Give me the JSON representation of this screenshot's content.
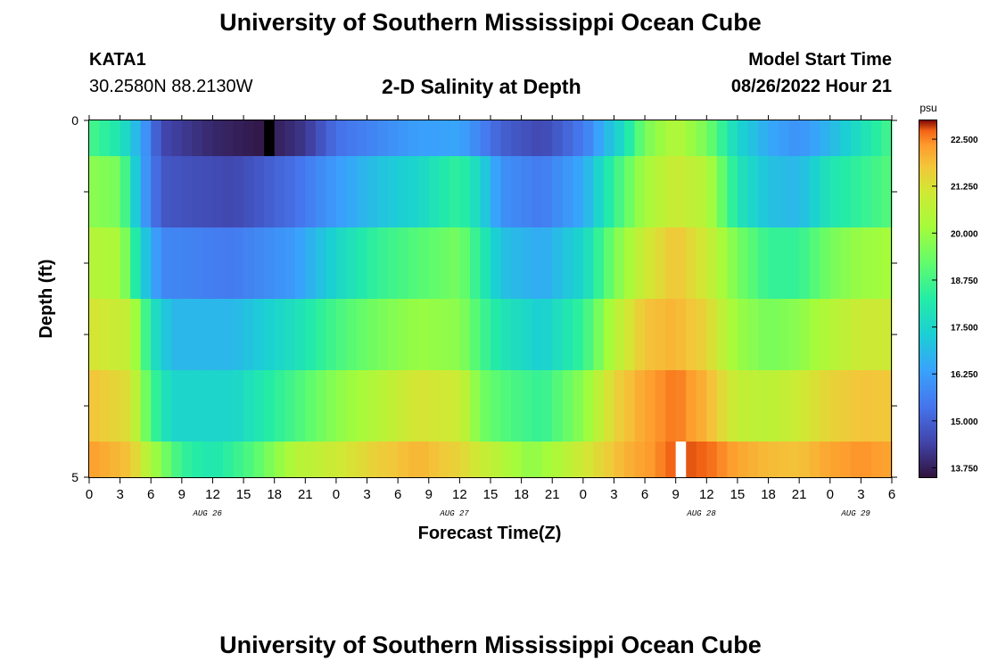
{
  "page": {
    "main_title": "University of Southern Mississippi Ocean Cube",
    "station_name": "KATA1",
    "station_coords": "30.2580N  88.2130W",
    "chart_title": "2-D Salinity at Depth",
    "model_start_label": "Model Start Time",
    "model_start_time": "08/26/2022 Hour 21",
    "footer_title": "University of Southern Mississippi Ocean Cube"
  },
  "chart_data": {
    "type": "heatmap",
    "title": "2-D Salinity at Depth",
    "xlabel": "Forecast Time(Z)",
    "ylabel": "Depth (ft)",
    "colorbar_unit": "psu",
    "ylim": [
      0,
      5
    ],
    "y_tick_labels": [
      "0",
      "5"
    ],
    "y_tick_values": [
      0,
      1,
      2,
      3,
      4,
      5
    ],
    "x_hour_range": [
      0,
      78
    ],
    "x_tick_hours": [
      0,
      3,
      6,
      9,
      12,
      15,
      18,
      21,
      24,
      27,
      30,
      33,
      36,
      39,
      42,
      45,
      48,
      51,
      54,
      57,
      60,
      63,
      66,
      69,
      72,
      75,
      78
    ],
    "x_tick_labels": [
      "0",
      "3",
      "6",
      "9",
      "12",
      "15",
      "18",
      "21",
      "0",
      "3",
      "6",
      "9",
      "12",
      "15",
      "18",
      "21",
      "0",
      "3",
      "6",
      "9",
      "12",
      "15",
      "18",
      "21",
      "0",
      "3",
      "6"
    ],
    "date_labels": [
      {
        "text": "AUG 26",
        "hour": 11.5
      },
      {
        "text": "AUG 27",
        "hour": 35.5
      },
      {
        "text": "AUG 28",
        "hour": 59.5
      },
      {
        "text": "AUG 29",
        "hour": 74.5
      }
    ],
    "colorbar_min": 13.5,
    "colorbar_max": 23.0,
    "colorbar_ticks": [
      "22.500",
      "21.250",
      "20.000",
      "18.750",
      "17.500",
      "16.250",
      "15.000",
      "13.750"
    ],
    "colorbar_tick_values": [
      22.5,
      21.25,
      20.0,
      18.75,
      17.5,
      16.25,
      15.0,
      13.75
    ],
    "depth_layers": [
      {
        "depth_range": [
          0.0,
          0.5
        ],
        "keyframes": [
          [
            0,
            18.8
          ],
          [
            3,
            18.0
          ],
          [
            5,
            16.5
          ],
          [
            7,
            14.5
          ],
          [
            12,
            13.9
          ],
          [
            17,
            13.6
          ],
          [
            21,
            14.2
          ],
          [
            24,
            15.3
          ],
          [
            28,
            15.8
          ],
          [
            32,
            16.3
          ],
          [
            36,
            16.4
          ],
          [
            40,
            15.0
          ],
          [
            44,
            14.5
          ],
          [
            48,
            15.5
          ],
          [
            52,
            17.8
          ],
          [
            54,
            19.5
          ],
          [
            57,
            20.5
          ],
          [
            60,
            19.5
          ],
          [
            63,
            17.5
          ],
          [
            66,
            16.5
          ],
          [
            69,
            16.0
          ],
          [
            72,
            16.8
          ],
          [
            75,
            17.8
          ],
          [
            78,
            18.8
          ]
        ]
      },
      {
        "depth_range": [
          0.5,
          1.5
        ],
        "keyframes": [
          [
            0,
            19.8
          ],
          [
            3,
            19.5
          ],
          [
            5,
            16.5
          ],
          [
            7,
            14.8
          ],
          [
            14,
            14.5
          ],
          [
            20,
            15.3
          ],
          [
            24,
            16.2
          ],
          [
            28,
            17.0
          ],
          [
            32,
            17.5
          ],
          [
            36,
            18.5
          ],
          [
            38,
            17.5
          ],
          [
            40,
            16.0
          ],
          [
            44,
            15.5
          ],
          [
            48,
            16.5
          ],
          [
            51,
            18.5
          ],
          [
            54,
            20.2
          ],
          [
            57,
            21.0
          ],
          [
            60,
            20.5
          ],
          [
            63,
            18.0
          ],
          [
            66,
            17.0
          ],
          [
            69,
            16.8
          ],
          [
            72,
            18.0
          ],
          [
            75,
            18.5
          ],
          [
            78,
            19.0
          ]
        ]
      },
      {
        "depth_range": [
          1.5,
          2.5
        ],
        "keyframes": [
          [
            0,
            20.5
          ],
          [
            3,
            20.3
          ],
          [
            5,
            17.5
          ],
          [
            7,
            15.8
          ],
          [
            14,
            15.5
          ],
          [
            20,
            16.2
          ],
          [
            24,
            17.5
          ],
          [
            28,
            18.5
          ],
          [
            32,
            19.0
          ],
          [
            36,
            19.5
          ],
          [
            38,
            18.3
          ],
          [
            40,
            17.0
          ],
          [
            44,
            16.5
          ],
          [
            48,
            17.5
          ],
          [
            51,
            19.5
          ],
          [
            54,
            21.0
          ],
          [
            57,
            21.8
          ],
          [
            60,
            21.0
          ],
          [
            63,
            19.5
          ],
          [
            66,
            18.5
          ],
          [
            69,
            18.5
          ],
          [
            72,
            19.5
          ],
          [
            75,
            20.0
          ],
          [
            78,
            20.2
          ]
        ]
      },
      {
        "depth_range": [
          2.5,
          3.5
        ],
        "keyframes": [
          [
            0,
            21.2
          ],
          [
            4,
            20.8
          ],
          [
            6,
            18.0
          ],
          [
            8,
            16.8
          ],
          [
            14,
            16.8
          ],
          [
            20,
            17.8
          ],
          [
            24,
            18.8
          ],
          [
            28,
            19.5
          ],
          [
            32,
            20.0
          ],
          [
            36,
            19.8
          ],
          [
            38,
            18.8
          ],
          [
            40,
            18.0
          ],
          [
            44,
            17.3
          ],
          [
            48,
            18.5
          ],
          [
            51,
            20.5
          ],
          [
            54,
            21.8
          ],
          [
            57,
            22.0
          ],
          [
            60,
            21.5
          ],
          [
            63,
            20.0
          ],
          [
            66,
            19.5
          ],
          [
            69,
            19.8
          ],
          [
            72,
            20.5
          ],
          [
            75,
            21.0
          ],
          [
            78,
            21.0
          ]
        ]
      },
      {
        "depth_range": [
          3.5,
          4.5
        ],
        "keyframes": [
          [
            0,
            21.8
          ],
          [
            4,
            21.3
          ],
          [
            6,
            18.8
          ],
          [
            8,
            17.5
          ],
          [
            14,
            17.5
          ],
          [
            20,
            18.8
          ],
          [
            24,
            19.8
          ],
          [
            28,
            20.5
          ],
          [
            32,
            21.2
          ],
          [
            36,
            21.0
          ],
          [
            38,
            19.5
          ],
          [
            40,
            19.0
          ],
          [
            44,
            18.5
          ],
          [
            48,
            19.8
          ],
          [
            51,
            21.5
          ],
          [
            54,
            22.2
          ],
          [
            57,
            22.6
          ],
          [
            60,
            22.0
          ],
          [
            63,
            20.8
          ],
          [
            66,
            20.6
          ],
          [
            69,
            21.0
          ],
          [
            72,
            21.5
          ],
          [
            75,
            21.8
          ],
          [
            78,
            21.7
          ]
        ]
      },
      {
        "depth_range": [
          4.5,
          5.0
        ],
        "keyframes": [
          [
            0,
            22.3
          ],
          [
            4,
            21.8
          ],
          [
            6,
            20.3
          ],
          [
            9,
            18.5
          ],
          [
            12,
            18.0
          ],
          [
            16,
            19.0
          ],
          [
            20,
            20.5
          ],
          [
            24,
            21.0
          ],
          [
            28,
            21.6
          ],
          [
            32,
            22.0
          ],
          [
            36,
            21.5
          ],
          [
            40,
            20.5
          ],
          [
            43,
            19.8
          ],
          [
            46,
            20.5
          ],
          [
            49,
            21.3
          ],
          [
            52,
            22.0
          ],
          [
            55,
            22.4
          ],
          [
            57,
            22.8
          ],
          [
            60,
            22.7
          ],
          [
            63,
            22.2
          ],
          [
            66,
            21.9
          ],
          [
            69,
            21.8
          ],
          [
            72,
            22.2
          ],
          [
            75,
            22.4
          ],
          [
            78,
            22.2
          ]
        ]
      }
    ],
    "special_cells": [
      {
        "hour": 17.5,
        "layer": 0,
        "color": "#000000"
      },
      {
        "hour": 57.5,
        "layer": 5,
        "color": "#ffffff"
      }
    ]
  }
}
